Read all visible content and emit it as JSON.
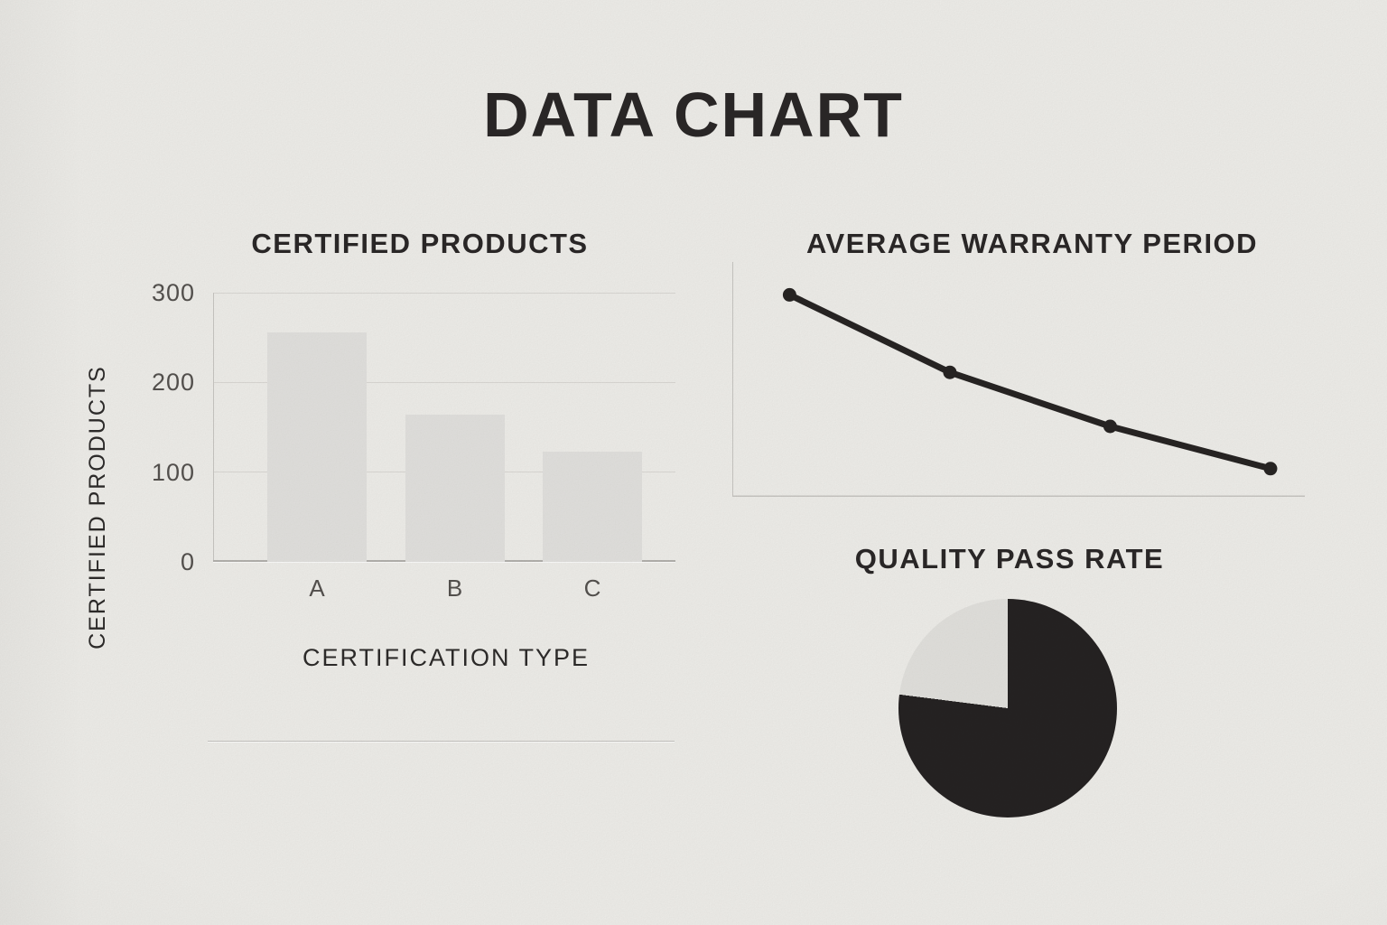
{
  "title": "DATA CHART",
  "colors": {
    "background": "#f0efeb",
    "title_ink": "#2b2828",
    "label_ink": "#2e2c2b",
    "tick_ink": "#55524f",
    "bar_fill": "#e3e2df",
    "gridline": "#dbd9d5",
    "axis_light": "#c9c7c3",
    "axis_dark": "#b4b2ae",
    "divider": "#c6c4c0",
    "line_stroke": "#282524",
    "pie_dark": "#262323",
    "pie_light": "#e3e2de"
  },
  "chart_data": [
    {
      "type": "bar",
      "title": "CERTIFIED PRODUCTS",
      "xlabel": "CERTIFICATION TYPE",
      "ylabel": "CERTIFIED PRODUCTS",
      "categories": [
        "A",
        "B",
        "C"
      ],
      "values": [
        256,
        164,
        123
      ],
      "yticks": [
        0,
        100,
        200,
        300
      ],
      "ylim": [
        0,
        300
      ],
      "grid": true,
      "legend": false
    },
    {
      "type": "line",
      "title": "AVERAGE WARRANTY PERIOD",
      "x": [
        1,
        2,
        3,
        4
      ],
      "x_percent_along_axis": [
        10,
        38,
        66,
        94
      ],
      "y_percent_of_axis_height": [
        86,
        53,
        30,
        12
      ],
      "tick_labels_shown": false,
      "marker": "circle",
      "legend": false
    },
    {
      "type": "pie",
      "title": "QUALITY PASS RATE",
      "start_angle_deg_from_top": 0,
      "segments": [
        {
          "name": "dark",
          "value_percent": 77,
          "color_key": "pie_dark"
        },
        {
          "name": "light",
          "value_percent": 23,
          "color_key": "pie_light"
        }
      ],
      "legend": false
    }
  ]
}
